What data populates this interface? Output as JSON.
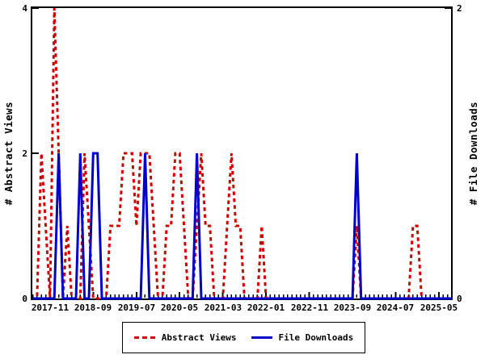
{
  "page": {
    "background": "#ffffff"
  },
  "chart_data": {
    "type": "line",
    "title": "",
    "x_months": [
      "2017-07",
      "2017-08",
      "2017-09",
      "2017-10",
      "2017-11",
      "2017-12",
      "2018-01",
      "2018-02",
      "2018-03",
      "2018-04",
      "2018-05",
      "2018-06",
      "2018-07",
      "2018-08",
      "2018-09",
      "2018-10",
      "2018-11",
      "2018-12",
      "2019-01",
      "2019-02",
      "2019-03",
      "2019-04",
      "2019-05",
      "2019-06",
      "2019-07",
      "2019-08",
      "2019-09",
      "2019-10",
      "2019-11",
      "2019-12",
      "2020-01",
      "2020-02",
      "2020-03",
      "2020-04",
      "2020-05",
      "2020-06",
      "2020-07",
      "2020-08",
      "2020-09",
      "2020-10",
      "2020-11",
      "2020-12",
      "2021-01",
      "2021-02",
      "2021-03",
      "2021-04",
      "2021-05",
      "2021-06",
      "2021-07",
      "2021-08",
      "2021-09",
      "2021-10",
      "2021-11",
      "2021-12",
      "2022-01",
      "2022-02",
      "2022-03",
      "2022-04",
      "2022-05",
      "2022-06",
      "2022-07",
      "2022-08",
      "2022-09",
      "2022-10",
      "2022-11",
      "2022-12",
      "2023-01",
      "2023-02",
      "2023-03",
      "2023-04",
      "2023-05",
      "2023-06",
      "2023-07",
      "2023-08",
      "2023-09",
      "2023-10",
      "2023-11",
      "2023-12",
      "2024-01",
      "2024-02",
      "2024-03",
      "2024-04",
      "2024-05",
      "2024-06",
      "2024-07",
      "2024-08",
      "2024-09",
      "2024-10",
      "2024-11",
      "2024-12",
      "2025-01",
      "2025-02",
      "2025-03",
      "2025-04",
      "2025-05",
      "2025-06",
      "2025-07",
      "2025-08"
    ],
    "x_major_indices": [
      4,
      14,
      24,
      34,
      44,
      54,
      64,
      74,
      84,
      94
    ],
    "x_major_labels": [
      "2017-11",
      "2018-09",
      "2019-07",
      "2020-05",
      "2021-03",
      "2022-01",
      "2022-11",
      "2023-09",
      "2024-07",
      "2025-05"
    ],
    "y_left": {
      "label": "# Abstract Views",
      "ticks": [
        0,
        2,
        4
      ],
      "tick_labels": [
        "0",
        "2",
        "4"
      ],
      "range": [
        0,
        4
      ]
    },
    "y_right": {
      "label": "# File Downloads",
      "ticks": [
        0,
        2
      ],
      "tick_labels": [
        "0",
        "2"
      ],
      "range": [
        0,
        2
      ]
    },
    "grid": false,
    "legend": {
      "position": "bottom-center",
      "entries": [
        "Abstract Views",
        "File Downloads"
      ]
    },
    "series": [
      {
        "name": "Abstract Views",
        "axis": "left",
        "color": "#cc0000",
        "style": "dashed",
        "values": [
          0,
          0,
          2,
          1,
          0,
          4,
          2,
          0,
          1,
          0,
          0,
          0,
          2,
          1,
          0,
          0,
          0,
          0,
          1,
          1,
          1,
          2,
          2,
          2,
          1,
          2,
          2,
          2,
          1,
          0,
          0,
          1,
          1,
          2,
          2,
          1,
          0,
          0,
          1,
          2,
          1,
          1,
          0,
          0,
          0,
          1,
          2,
          1,
          1,
          0,
          0,
          0,
          0,
          1,
          0,
          0,
          0,
          0,
          0,
          0,
          0,
          0,
          0,
          0,
          0,
          0,
          0,
          0,
          0,
          0,
          0,
          0,
          0,
          0,
          0,
          1,
          0,
          0,
          0,
          0,
          0,
          0,
          0,
          0,
          0,
          0,
          0,
          0,
          1,
          1,
          0,
          0,
          0,
          0,
          0,
          0,
          0,
          0
        ]
      },
      {
        "name": "File Downloads",
        "axis": "right",
        "color": "#0000cc",
        "style": "solid",
        "values": [
          0,
          0,
          0,
          0,
          0,
          0,
          1,
          0,
          0,
          0,
          0,
          1,
          0,
          0,
          1,
          1,
          0,
          0,
          0,
          0,
          0,
          0,
          0,
          0,
          0,
          0,
          1,
          0,
          0,
          0,
          0,
          0,
          0,
          0,
          0,
          0,
          0,
          0,
          1,
          0,
          0,
          0,
          0,
          0,
          0,
          0,
          0,
          0,
          0,
          0,
          0,
          0,
          0,
          0,
          0,
          0,
          0,
          0,
          0,
          0,
          0,
          0,
          0,
          0,
          0,
          0,
          0,
          0,
          0,
          0,
          0,
          0,
          0,
          0,
          0,
          1,
          0,
          0,
          0,
          0,
          0,
          0,
          0,
          0,
          0,
          0,
          0,
          0,
          0,
          0,
          0,
          0,
          0,
          0,
          0,
          0,
          0,
          0
        ]
      }
    ]
  }
}
